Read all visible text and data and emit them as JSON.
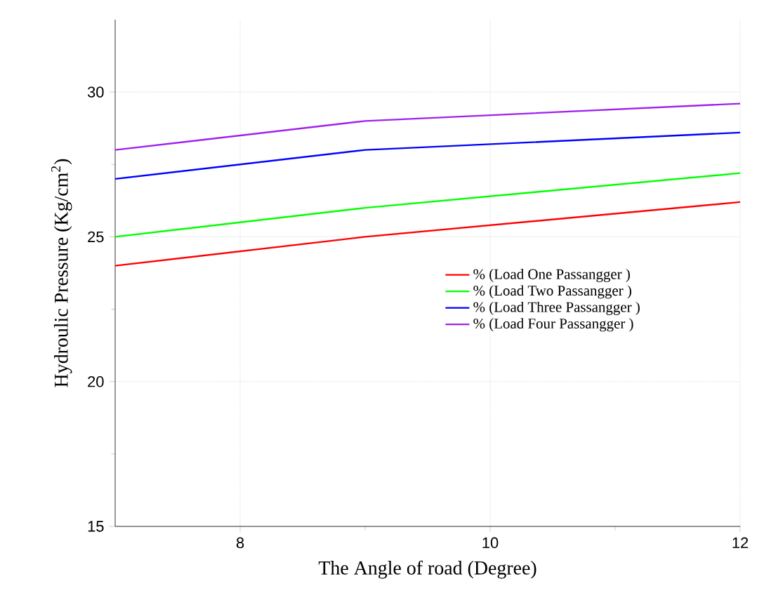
{
  "chart_data": {
    "type": "line",
    "xlabel": "The Angle of road (Degree)",
    "ylabel": "Hydroulic Pressure (Kg/cm$^{2}$)",
    "x": [
      7,
      9,
      12
    ],
    "series": [
      {
        "name": "% (Load One Passangger )",
        "color": "#ff0000",
        "values": [
          24.0,
          25.0,
          26.2
        ]
      },
      {
        "name": "% (Load Two Passangger )",
        "color": "#00ff00",
        "values": [
          25.0,
          26.0,
          27.2
        ]
      },
      {
        "name": "% (Load Three Passangger )",
        "color": "#0000ff",
        "values": [
          27.0,
          28.0,
          28.6
        ]
      },
      {
        "name": "% (Load Four Passangger )",
        "color": "#a020f0",
        "values": [
          28.0,
          29.0,
          29.6
        ]
      }
    ],
    "xlim": [
      7,
      12
    ],
    "xticks": [
      8,
      10,
      12
    ],
    "ylim": [
      15,
      32.5
    ],
    "yticks": [
      15,
      20,
      25,
      30
    ],
    "grid": true,
    "legend": "right",
    "marker": "none",
    "line_style": "solid"
  }
}
